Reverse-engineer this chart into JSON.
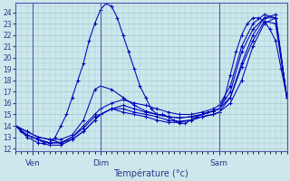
{
  "xlabel": "Température (°c)",
  "bg_color": "#cce8ec",
  "grid_color": "#a0c8d0",
  "line_color": "#0000bb",
  "ylim": [
    11.8,
    24.8
  ],
  "yticks": [
    12,
    13,
    14,
    15,
    16,
    17,
    18,
    19,
    20,
    21,
    22,
    23,
    24
  ],
  "xlim": [
    0,
    48
  ],
  "xtick_positions": [
    3,
    15,
    36
  ],
  "xtick_labels": [
    "Ven",
    "Dim",
    "Sam"
  ],
  "vlines": [
    3,
    15,
    36
  ],
  "series": [
    {
      "x": [
        0,
        1,
        2,
        3,
        4,
        5,
        6,
        7,
        8,
        9,
        10,
        11,
        12,
        13,
        14,
        15,
        16,
        17,
        18,
        19,
        20,
        21,
        22,
        23,
        24,
        25,
        26,
        27,
        28,
        29,
        30,
        31,
        32,
        33,
        34,
        35,
        36,
        37,
        38,
        39,
        40,
        41,
        42,
        43,
        44,
        45,
        46,
        47,
        48
      ],
      "y": [
        14,
        13.5,
        13.2,
        13.0,
        12.8,
        12.5,
        12.5,
        13.0,
        14.0,
        15.0,
        16.5,
        18.0,
        19.5,
        21.5,
        23.0,
        24.2,
        24.8,
        24.5,
        23.5,
        22.0,
        20.5,
        19.0,
        17.5,
        16.5,
        15.5,
        15.0,
        15.0,
        14.8,
        14.5,
        14.2,
        14.2,
        14.5,
        14.8,
        15.0,
        15.2,
        15.3,
        15.5,
        16.5,
        18.5,
        20.5,
        22.0,
        23.0,
        23.5,
        23.5,
        23.2,
        22.5,
        21.5,
        19.0,
        16.5
      ]
    },
    {
      "x": [
        0,
        2,
        4,
        6,
        8,
        10,
        12,
        14,
        15,
        17,
        19,
        21,
        23,
        25,
        27,
        29,
        31,
        33,
        35,
        36,
        38,
        40,
        42,
        44,
        46,
        48
      ],
      "y": [
        14,
        13.5,
        13.0,
        12.8,
        12.5,
        12.8,
        13.5,
        14.5,
        15.0,
        15.5,
        15.2,
        15.0,
        14.8,
        14.5,
        14.3,
        14.3,
        14.5,
        14.8,
        15.0,
        15.2,
        16.0,
        18.0,
        21.0,
        23.0,
        23.5,
        16.5
      ]
    },
    {
      "x": [
        0,
        2,
        4,
        6,
        8,
        10,
        12,
        14,
        15,
        17,
        19,
        21,
        23,
        25,
        27,
        29,
        31,
        33,
        35,
        36,
        38,
        40,
        42,
        44,
        46,
        48
      ],
      "y": [
        14,
        13.2,
        12.8,
        12.5,
        12.5,
        13.0,
        13.8,
        14.8,
        15.0,
        15.5,
        15.5,
        15.2,
        15.0,
        14.8,
        14.5,
        14.4,
        14.5,
        14.8,
        15.0,
        15.2,
        16.5,
        19.5,
        22.0,
        23.5,
        23.8,
        16.5
      ]
    },
    {
      "x": [
        0,
        2,
        4,
        6,
        8,
        10,
        12,
        14,
        15,
        17,
        19,
        21,
        23,
        25,
        27,
        29,
        31,
        33,
        35,
        36,
        38,
        40,
        42,
        44,
        46,
        48
      ],
      "y": [
        14,
        13.0,
        12.5,
        12.3,
        12.3,
        12.8,
        13.5,
        14.5,
        15.0,
        15.5,
        15.8,
        15.5,
        15.2,
        15.0,
        14.8,
        14.7,
        14.8,
        15.0,
        15.3,
        15.5,
        17.0,
        20.5,
        22.5,
        23.5,
        23.5,
        16.5
      ]
    },
    {
      "x": [
        0,
        2,
        4,
        6,
        8,
        10,
        12,
        14,
        15,
        17,
        19,
        21,
        23,
        25,
        27,
        29,
        31,
        33,
        35,
        36,
        38,
        40,
        42,
        44,
        46,
        48
      ],
      "y": [
        14,
        13.2,
        12.8,
        12.5,
        12.5,
        13.0,
        14.0,
        15.0,
        15.5,
        16.0,
        16.3,
        16.0,
        15.8,
        15.5,
        15.2,
        15.0,
        15.0,
        15.2,
        15.5,
        15.8,
        17.5,
        21.0,
        23.0,
        23.8,
        23.5,
        16.5
      ]
    },
    {
      "x": [
        0,
        2,
        4,
        6,
        8,
        10,
        12,
        14,
        15,
        17,
        19,
        21,
        23,
        25,
        27,
        29,
        31,
        33,
        35,
        36,
        38,
        40,
        42,
        44,
        46,
        48
      ],
      "y": [
        14,
        13.5,
        13.0,
        12.8,
        12.8,
        13.2,
        14.5,
        17.2,
        17.5,
        17.2,
        16.5,
        15.8,
        15.3,
        15.0,
        14.8,
        14.7,
        14.8,
        15.0,
        15.3,
        15.5,
        16.5,
        19.2,
        21.5,
        23.2,
        23.0,
        16.5
      ]
    }
  ]
}
